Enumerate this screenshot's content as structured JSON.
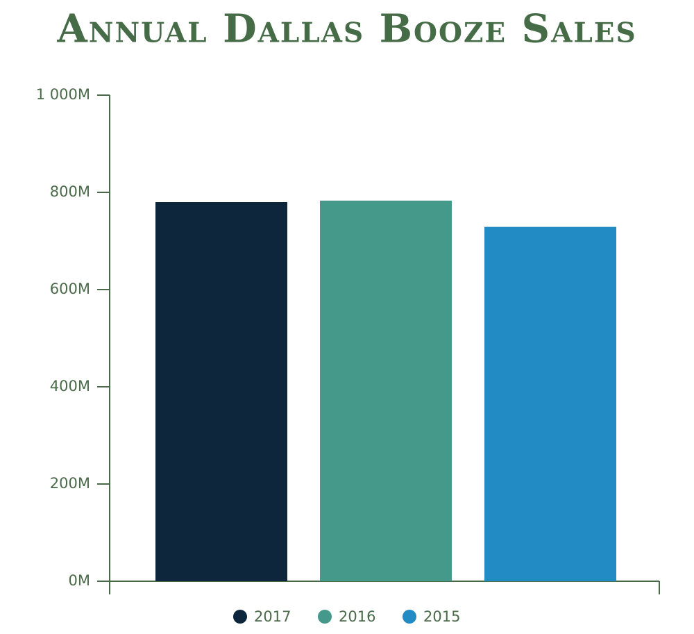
{
  "chart_data": {
    "type": "bar",
    "title": "Annual Dallas Booze Sales",
    "categories": [
      null
    ],
    "series": [
      {
        "name": "2017",
        "color": "#0e263b",
        "values": [
          780000000
        ]
      },
      {
        "name": "2016",
        "color": "#44998a",
        "values": [
          783000000
        ]
      },
      {
        "name": "2015",
        "color": "#238bc4",
        "values": [
          729000000
        ]
      }
    ],
    "ylim": [
      0,
      1000000000
    ],
    "yticks": [
      {
        "value": 0,
        "label": "0M"
      },
      {
        "value": 200000000,
        "label": "200M"
      },
      {
        "value": 400000000,
        "label": "400M"
      },
      {
        "value": 600000000,
        "label": "600M"
      },
      {
        "value": 800000000,
        "label": "800M"
      },
      {
        "value": 1000000000,
        "label": "1 000M"
      }
    ],
    "grid": false,
    "legend": "bottom"
  }
}
